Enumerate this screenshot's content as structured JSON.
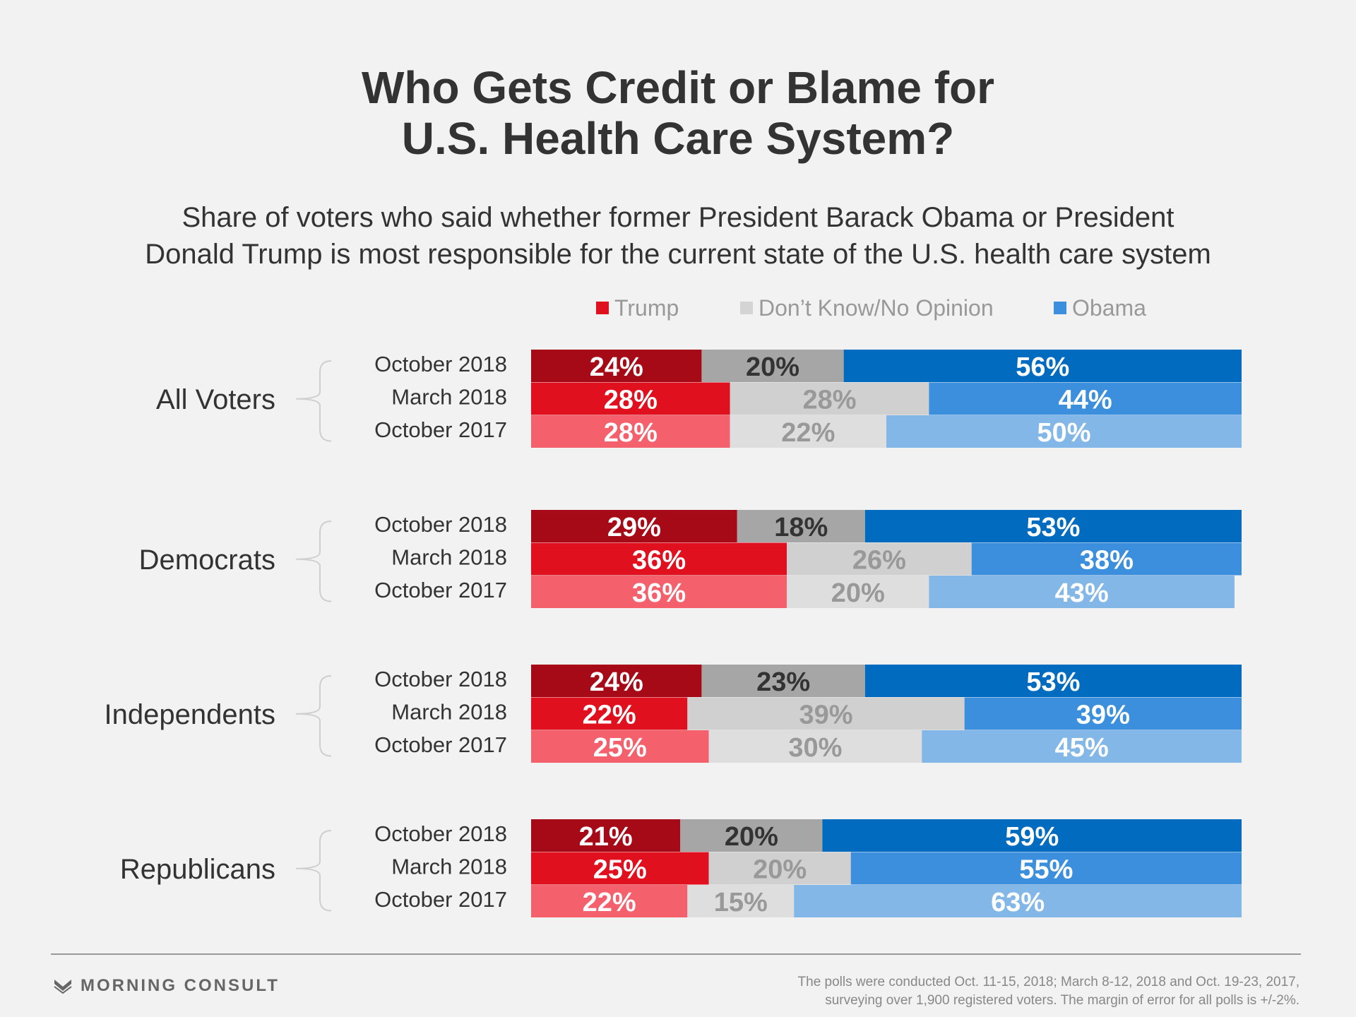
{
  "header": {
    "title_line1": "Who Gets Credit or Blame for",
    "title_line2": "U.S. Health Care System?",
    "subtitle_line1": "Share of voters who said whether former President Barack Obama or President",
    "subtitle_line2": "Donald Trump is most responsible for the current state of the U.S. health care system"
  },
  "legend": [
    {
      "label": "Trump",
      "color": "#e0101e"
    },
    {
      "label": "Don’t Know/No Opinion",
      "color": "#d4d4d4"
    },
    {
      "label": "Obama",
      "color": "#3b8fdd"
    }
  ],
  "chart_data": {
    "type": "bar",
    "stacked": true,
    "orientation": "horizontal",
    "value_suffix": "%",
    "series": [
      "Trump",
      "Don’t Know/No Opinion",
      "Obama"
    ],
    "groups": [
      {
        "name": "All Voters",
        "rows": [
          {
            "label": "October 2018",
            "values": [
              24,
              20,
              56
            ]
          },
          {
            "label": "March 2018",
            "values": [
              28,
              28,
              44
            ]
          },
          {
            "label": "October 2017",
            "values": [
              28,
              22,
              50
            ]
          }
        ]
      },
      {
        "name": "Democrats",
        "rows": [
          {
            "label": "October 2018",
            "values": [
              29,
              18,
              53
            ]
          },
          {
            "label": "March 2018",
            "values": [
              36,
              26,
              38
            ]
          },
          {
            "label": "October 2017",
            "values": [
              36,
              20,
              43
            ]
          }
        ]
      },
      {
        "name": "Independents",
        "rows": [
          {
            "label": "October 2018",
            "values": [
              24,
              23,
              53
            ]
          },
          {
            "label": "March 2018",
            "values": [
              22,
              39,
              39
            ]
          },
          {
            "label": "October 2017",
            "values": [
              25,
              30,
              45
            ]
          }
        ]
      },
      {
        "name": "Republicans",
        "rows": [
          {
            "label": "October 2018",
            "values": [
              21,
              20,
              59
            ]
          },
          {
            "label": "March 2018",
            "values": [
              25,
              20,
              55
            ]
          },
          {
            "label": "October 2017",
            "values": [
              22,
              15,
              63
            ]
          }
        ]
      }
    ],
    "row_colors": [
      [
        "#a50a16",
        "#a6a6a6",
        "#006bbf"
      ],
      [
        "#e0101e",
        "#d0d0d0",
        "#3b8fdd"
      ],
      [
        "#f4606c",
        "#dedede",
        "#82b7e8"
      ]
    ],
    "row_text_colors": [
      [
        "#ffffff",
        "#333333",
        "#ffffff"
      ],
      [
        "#ffffff",
        "#999999",
        "#ffffff"
      ],
      [
        "#ffffff",
        "#999999",
        "#ffffff"
      ]
    ]
  },
  "footer": {
    "logo_text": "MORNING CONSULT",
    "note_line1": "The polls were conducted Oct. 11-15, 2018; March 8-12, 2018 and Oct. 19-23, 2017,",
    "note_line2": "surveying over 1,900 registered voters. The margin of error for all polls is +/-2%."
  }
}
